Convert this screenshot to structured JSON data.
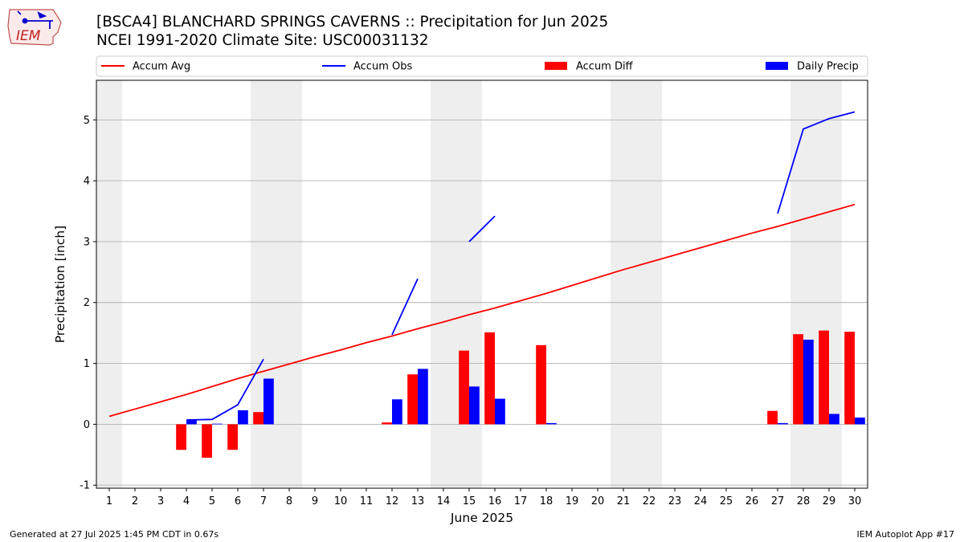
{
  "header": {
    "title": "[BSCA4] BLANCHARD SPRINGS CAVERNS :: Precipitation for Jun 2025",
    "subtitle": "NCEI 1991-2020 Climate Site: USC00031132",
    "logo_text": "IEM"
  },
  "footer": {
    "generated": "Generated at 27 Jul 2025 1:45 PM CDT in 0.67s",
    "app": "IEM Autoplot App #17"
  },
  "colors": {
    "accum_avg": "#ff0000",
    "accum_obs": "#0000ff",
    "accum_diff": "#ff0000",
    "daily_precip": "#0000ff",
    "weekend_shade": "#eeeeee",
    "grid": "#b0b0b0"
  },
  "chart_data": {
    "type": "bar",
    "xlabel": "June 2025",
    "ylabel": "Precipitation [inch]",
    "xlim": [
      0.5,
      30.5
    ],
    "ylim": [
      -1.05,
      5.65
    ],
    "yticks": [
      -1,
      0,
      1,
      2,
      3,
      4,
      5
    ],
    "x": [
      1,
      2,
      3,
      4,
      5,
      6,
      7,
      8,
      9,
      10,
      11,
      12,
      13,
      14,
      15,
      16,
      17,
      18,
      19,
      20,
      21,
      22,
      23,
      24,
      25,
      26,
      27,
      28,
      29,
      30
    ],
    "legend": [
      "Accum Avg",
      "Accum Obs",
      "Accum Diff",
      "Daily Precip"
    ],
    "legend_position": "top",
    "weekend_shading": [
      [
        0.5,
        1.5
      ],
      [
        6.5,
        8.5
      ],
      [
        13.5,
        15.5
      ],
      [
        20.5,
        22.5
      ],
      [
        27.5,
        29.5
      ]
    ],
    "series": [
      {
        "name": "Accum Avg",
        "type": "line",
        "values": [
          0.13,
          0.25,
          0.37,
          0.49,
          0.62,
          0.75,
          0.87,
          0.99,
          1.11,
          1.22,
          1.34,
          1.45,
          1.57,
          1.68,
          1.8,
          1.91,
          2.03,
          2.15,
          2.28,
          2.41,
          2.54,
          2.66,
          2.78,
          2.9,
          3.02,
          3.14,
          3.25,
          3.37,
          3.49,
          3.61
        ]
      },
      {
        "name": "Accum Obs",
        "type": "line",
        "values": [
          null,
          null,
          null,
          0.07,
          0.08,
          0.32,
          1.07,
          null,
          null,
          null,
          null,
          1.47,
          2.39,
          null,
          3.0,
          3.42,
          null,
          null,
          null,
          null,
          null,
          null,
          null,
          null,
          null,
          null,
          3.46,
          4.85,
          5.02,
          5.13
        ]
      },
      {
        "name": "Accum Diff",
        "type": "bar",
        "values": [
          0,
          0,
          0,
          -0.42,
          -0.55,
          -0.42,
          0.2,
          0,
          0,
          0,
          0,
          0.03,
          0.82,
          0,
          1.21,
          1.51,
          0,
          1.3,
          0,
          0,
          0,
          0,
          0,
          0,
          0,
          0,
          0.22,
          1.48,
          1.54,
          1.52
        ]
      },
      {
        "name": "Daily Precip",
        "type": "bar",
        "values": [
          0,
          0,
          0,
          0.07,
          0.01,
          0.23,
          0.75,
          0,
          0,
          0,
          0,
          0.41,
          0.91,
          0,
          0.62,
          0.42,
          0,
          0.02,
          0,
          0,
          0,
          0,
          0,
          0,
          0,
          0,
          0.02,
          1.39,
          0.17,
          0.11
        ]
      }
    ]
  }
}
